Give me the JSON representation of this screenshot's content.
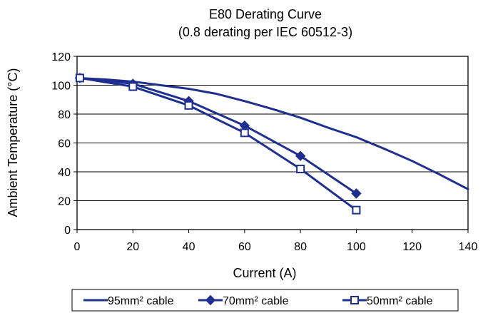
{
  "chart_data": {
    "type": "line",
    "title": "E80 Derating Curve",
    "subtitle": "(0.8 derating per IEC 60512-3)",
    "xlabel": "Current (A)",
    "ylabel": "Ambient Temperature (°C)",
    "xlim": [
      0,
      140
    ],
    "ylim": [
      0,
      120
    ],
    "x_ticks": [
      0,
      20,
      40,
      60,
      80,
      100,
      120,
      140
    ],
    "y_ticks": [
      0,
      20,
      40,
      60,
      80,
      100,
      120
    ],
    "grid": "horizontal",
    "legend_position": "bottom",
    "series_color": "#1f2f8f",
    "series": [
      {
        "name": "95mm² cable",
        "marker": "none",
        "x": [
          0,
          10,
          20,
          30,
          40,
          50,
          60,
          70,
          80,
          90,
          100,
          110,
          120,
          130,
          140
        ],
        "y": [
          105,
          104,
          102.5,
          100,
          97.5,
          94,
          89,
          83.5,
          77.5,
          70.5,
          64,
          56,
          47.5,
          38,
          28
        ]
      },
      {
        "name": "70mm² cable",
        "marker": "diamond",
        "x": [
          1,
          20,
          40,
          60,
          80,
          100
        ],
        "y": [
          105,
          101,
          89,
          72,
          51,
          25
        ]
      },
      {
        "name": "50mm² cable",
        "marker": "open-square",
        "x": [
          1,
          20,
          40,
          60,
          80,
          100
        ],
        "y": [
          105,
          99,
          86,
          67,
          42,
          13.5
        ]
      }
    ]
  }
}
